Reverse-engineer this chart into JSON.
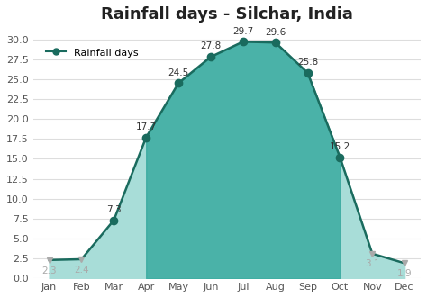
{
  "title": "Rainfall days - Silchar, India",
  "months": [
    "Jan",
    "Feb",
    "Mar",
    "Apr",
    "May",
    "Jun",
    "Jul",
    "Aug",
    "Sep",
    "Oct",
    "Nov",
    "Dec"
  ],
  "values": [
    2.3,
    2.4,
    7.3,
    17.7,
    24.5,
    27.8,
    29.7,
    29.6,
    25.8,
    15.2,
    3.1,
    1.9
  ],
  "line_color": "#1a6b5e",
  "fill_color_dark": "#3aaba0",
  "fill_color_light": "#a8ddd8",
  "marker_color": "#1a6b5e",
  "marker_size": 6,
  "ylim": [
    0,
    31
  ],
  "yticks": [
    0.0,
    2.5,
    5.0,
    7.5,
    10.0,
    12.5,
    15.0,
    17.5,
    20.0,
    22.5,
    25.0,
    27.5,
    30.0
  ],
  "legend_label": "Rainfall days",
  "bg_color": "#ffffff",
  "grid_color": "#dddddd",
  "label_fontsize": 8,
  "title_fontsize": 13,
  "annotation_color_active": "#333333",
  "annotation_color_inactive": "#aaaaaa"
}
